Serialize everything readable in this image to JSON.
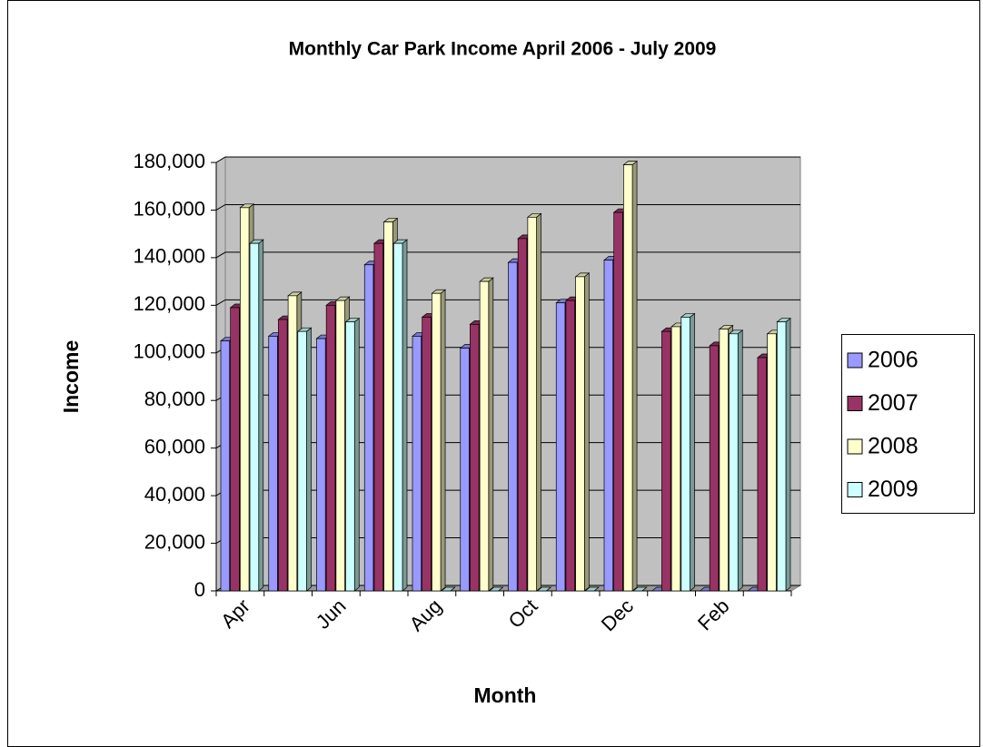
{
  "chart_data": {
    "type": "bar3d",
    "title": "Monthly Car Park Income April 2006 - July 2009",
    "x_label": "Month",
    "y_label": "Income",
    "categories": [
      "Apr",
      null,
      "Jun",
      null,
      "Aug",
      null,
      "Oct",
      null,
      "Dec",
      null,
      "Feb",
      null
    ],
    "series": [
      {
        "name": "2006",
        "color": "#9999ff",
        "values": [
          105000,
          107000,
          106000,
          137000,
          107000,
          102000,
          138000,
          121000,
          139000,
          0,
          0,
          0
        ]
      },
      {
        "name": "2007",
        "color": "#993366",
        "values": [
          119000,
          114000,
          120000,
          146000,
          115000,
          112000,
          148000,
          122000,
          159000,
          109000,
          103000,
          98000
        ]
      },
      {
        "name": "2008",
        "color": "#ffffcc",
        "values": [
          161000,
          124000,
          122000,
          155000,
          125000,
          130000,
          157000,
          132000,
          179000,
          111000,
          110000,
          108000
        ]
      },
      {
        "name": "2009",
        "color": "#ccffff",
        "values": [
          146000,
          109000,
          113000,
          146000,
          0,
          0,
          0,
          0,
          0,
          115000,
          108000,
          113000
        ]
      }
    ],
    "ylim": [
      0,
      180000
    ],
    "yticks": [
      0,
      {
        "value": 20000,
        "label": "20,000"
      },
      {
        "value": 40000,
        "label": "40,000"
      },
      {
        "value": 60000,
        "label": "60,000"
      },
      {
        "value": 80000,
        "label": "80,000"
      },
      {
        "value": 100000,
        "label": "100,000"
      },
      {
        "value": 120000,
        "label": "120,000"
      },
      {
        "value": 140000,
        "label": "140,000"
      },
      {
        "value": 160000,
        "label": "160,000"
      },
      {
        "value": 180000,
        "label": "180,000"
      }
    ],
    "grid": true,
    "legend": "right",
    "plot_background": "#c0c0c0"
  }
}
